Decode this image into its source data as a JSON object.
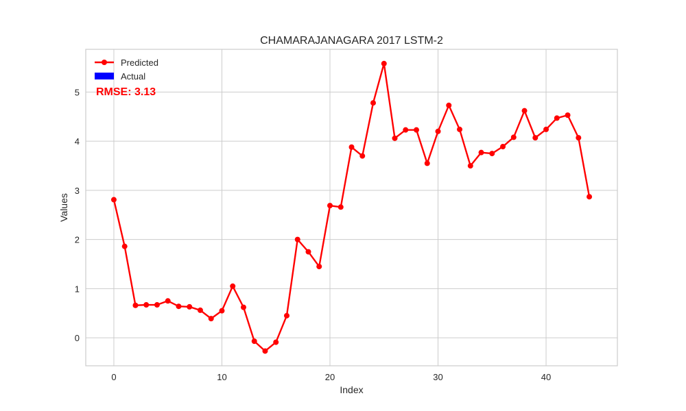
{
  "chart_data": {
    "type": "line",
    "title": "CHAMARAJANAGARA 2017 LSTM-2",
    "xlabel": "Index",
    "ylabel": "Values",
    "xlim": [
      -2.6,
      46.6
    ],
    "ylim": [
      -0.57,
      5.87
    ],
    "xticks": [
      0,
      10,
      20,
      30,
      40
    ],
    "yticks": [
      0,
      1,
      2,
      3,
      4,
      5
    ],
    "grid": true,
    "legend_position": "top-left",
    "series": [
      {
        "name": "Predicted",
        "color": "#ff0000",
        "marker": "circle",
        "x": [
          0,
          1,
          2,
          3,
          4,
          5,
          6,
          7,
          8,
          9,
          10,
          11,
          12,
          13,
          14,
          15,
          16,
          17,
          18,
          19,
          20,
          21,
          22,
          23,
          24,
          25,
          26,
          27,
          28,
          29,
          30,
          31,
          32,
          33,
          34,
          35,
          36,
          37,
          38,
          39,
          40,
          41,
          42,
          43,
          44
        ],
        "values": [
          2.81,
          1.86,
          0.66,
          0.67,
          0.67,
          0.75,
          0.64,
          0.63,
          0.56,
          0.39,
          0.55,
          1.05,
          0.62,
          -0.07,
          -0.27,
          -0.09,
          0.45,
          2.0,
          1.75,
          1.45,
          2.69,
          2.66,
          3.88,
          3.7,
          4.78,
          5.58,
          4.06,
          4.23,
          4.23,
          3.55,
          4.2,
          4.73,
          4.24,
          3.5,
          3.77,
          3.75,
          3.89,
          4.08,
          4.62,
          4.07,
          4.24,
          4.47,
          4.53,
          4.07,
          2.87
        ]
      },
      {
        "name": "Actual",
        "color": "#0000ff",
        "values": []
      }
    ],
    "annotations": [
      {
        "text": "RMSE: 3.13",
        "color": "#ff0000"
      }
    ]
  }
}
